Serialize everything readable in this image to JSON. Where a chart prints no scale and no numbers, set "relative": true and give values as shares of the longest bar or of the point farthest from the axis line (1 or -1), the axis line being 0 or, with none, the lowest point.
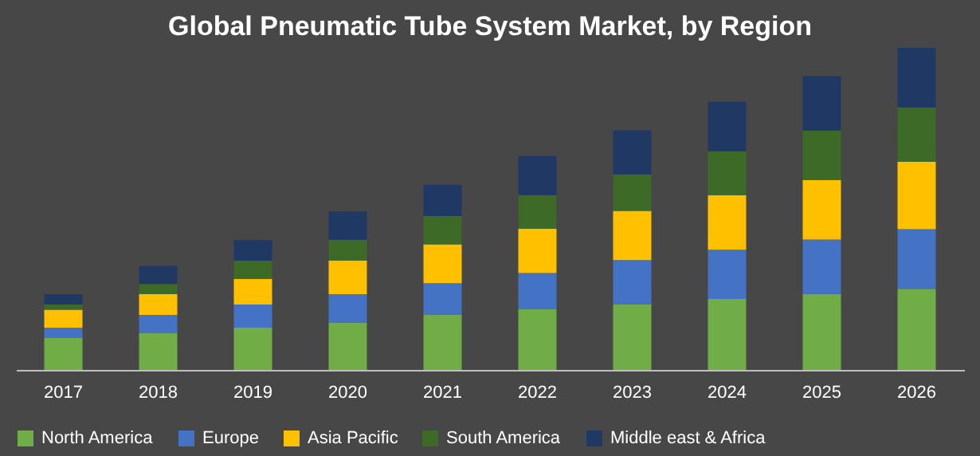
{
  "chart_data": {
    "type": "bar",
    "title": "Global Pneumatic Tube System Market, by Region",
    "stacked": true,
    "relative": true,
    "legend": "bottom",
    "grid": false,
    "categories": [
      "2017",
      "2018",
      "2019",
      "2020",
      "2021",
      "2022",
      "2023",
      "2024",
      "2025",
      "2026"
    ],
    "series": [
      {
        "name": "North America",
        "color": "#70ad47",
        "values": [
          0.099,
          0.115,
          0.131,
          0.147,
          0.172,
          0.188,
          0.204,
          0.22,
          0.236,
          0.252
        ]
      },
      {
        "name": "Europe",
        "color": "#4472c4",
        "values": [
          0.032,
          0.056,
          0.072,
          0.088,
          0.097,
          0.113,
          0.137,
          0.153,
          0.169,
          0.185
        ]
      },
      {
        "name": "Asia Pacific",
        "color": "#ffc000",
        "values": [
          0.056,
          0.064,
          0.08,
          0.105,
          0.121,
          0.137,
          0.153,
          0.169,
          0.185,
          0.209
        ]
      },
      {
        "name": "South America",
        "color": "#3d6b27",
        "values": [
          0.016,
          0.032,
          0.056,
          0.064,
          0.088,
          0.105,
          0.113,
          0.137,
          0.153,
          0.169
        ]
      },
      {
        "name": "Middle east & Africa",
        "color": "#203864",
        "values": [
          0.032,
          0.056,
          0.064,
          0.088,
          0.097,
          0.121,
          0.137,
          0.153,
          0.169,
          0.185
        ]
      }
    ]
  }
}
